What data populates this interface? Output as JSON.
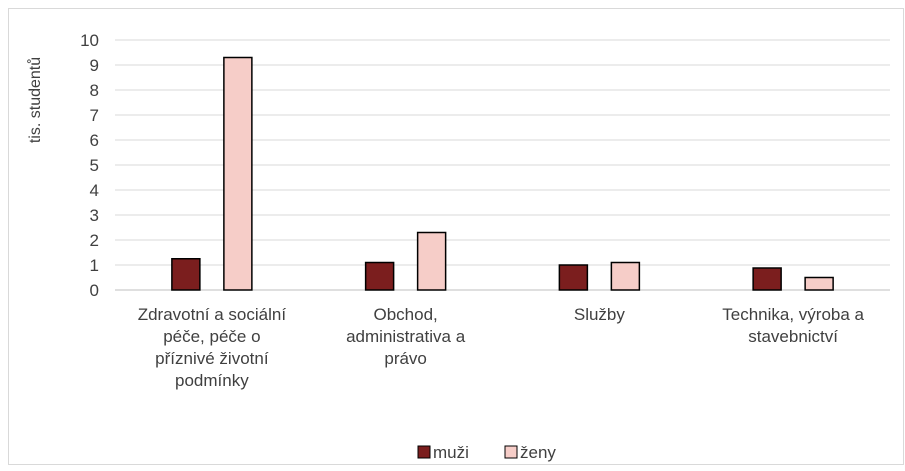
{
  "chart_data": {
    "type": "bar",
    "title": "",
    "xlabel": "",
    "ylabel": "tis. studentů",
    "ylim": [
      0,
      10
    ],
    "ytick_step": 1,
    "grid": true,
    "legend_position": "bottom",
    "categories": [
      [
        "Zdravotní a sociální",
        "péče, péče o",
        "příznivé životní",
        "podmínky"
      ],
      [
        "Obchod,",
        "administrativa a",
        "právo"
      ],
      [
        "Služby"
      ],
      [
        "Technika, výroba a",
        "stavebnictví"
      ]
    ],
    "series": [
      {
        "name": "muži",
        "color": "#7b1e1e",
        "values": [
          1.25,
          1.1,
          1.0,
          0.88
        ]
      },
      {
        "name": "ženy",
        "color": "#f6cdc8",
        "values": [
          9.3,
          2.3,
          1.1,
          0.5
        ]
      }
    ]
  }
}
